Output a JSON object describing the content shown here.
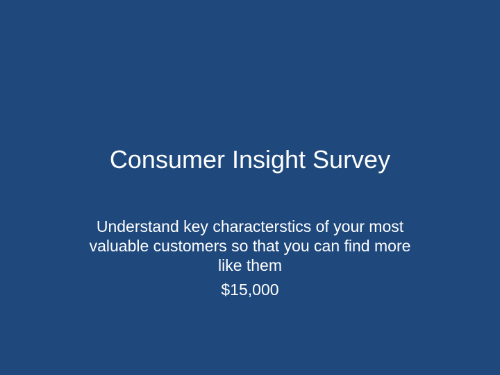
{
  "slide": {
    "title": "Consumer Insight Survey",
    "subtitle": "Understand key characterstics of your most valuable customers so that you can find more like them",
    "price": "$15,000",
    "background_color": "#1f497d",
    "text_color": "#ffffff"
  }
}
